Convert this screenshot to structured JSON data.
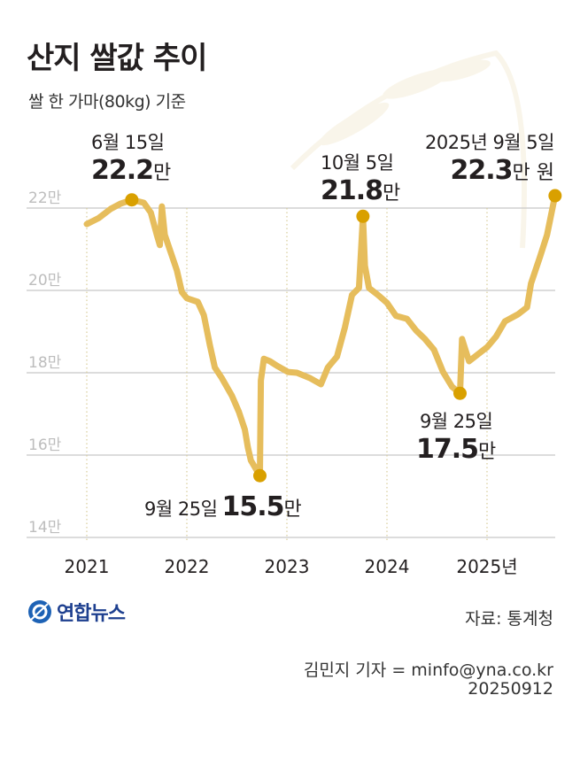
{
  "title": "산지 쌀값 추이",
  "subtitle": "쌀 한 가마(80kg) 기준",
  "logo": "연합뉴스",
  "source": "자료: 통계청",
  "byline": "김민지 기자 = minfo@yna.co.kr",
  "date": "20250912",
  "chart_data": {
    "type": "line",
    "title": "산지 쌀값 추이",
    "ylabel": "",
    "xlabel": "",
    "ylim": [
      14,
      22
    ],
    "yticks": [
      22,
      20,
      18,
      16,
      14
    ],
    "ytick_labels": [
      "22만",
      "20만",
      "18만",
      "16만",
      "14만"
    ],
    "xticks": [
      2021,
      2022,
      2023,
      2024,
      2025
    ],
    "xtick_labels": [
      "2021",
      "2022",
      "2023",
      "2024",
      "2025년"
    ],
    "grid": "horizontal",
    "line_color": "#e6bd5c",
    "marker_color": "#d9a000",
    "points": [
      [
        2021.0,
        21.61
      ],
      [
        2021.12,
        21.76
      ],
      [
        2021.24,
        21.98
      ],
      [
        2021.34,
        22.11
      ],
      [
        2021.45,
        22.2
      ],
      [
        2021.57,
        22.13
      ],
      [
        2021.64,
        21.89
      ],
      [
        2021.7,
        21.35
      ],
      [
        2021.73,
        21.1
      ],
      [
        2021.75,
        22.04
      ],
      [
        2021.78,
        21.35
      ],
      [
        2021.84,
        20.92
      ],
      [
        2021.9,
        20.49
      ],
      [
        2021.95,
        19.96
      ],
      [
        2022.0,
        19.81
      ],
      [
        2022.11,
        19.72
      ],
      [
        2022.17,
        19.4
      ],
      [
        2022.23,
        18.67
      ],
      [
        2022.28,
        18.13
      ],
      [
        2022.35,
        17.87
      ],
      [
        2022.45,
        17.44
      ],
      [
        2022.52,
        17.05
      ],
      [
        2022.58,
        16.62
      ],
      [
        2022.61,
        16.19
      ],
      [
        2022.64,
        15.87
      ],
      [
        2022.73,
        15.5
      ],
      [
        2022.74,
        17.81
      ],
      [
        2022.77,
        18.34
      ],
      [
        2022.83,
        18.28
      ],
      [
        2022.9,
        18.17
      ],
      [
        2023.01,
        18.02
      ],
      [
        2023.1,
        18.0
      ],
      [
        2023.23,
        17.87
      ],
      [
        2023.34,
        17.72
      ],
      [
        2023.41,
        18.13
      ],
      [
        2023.5,
        18.39
      ],
      [
        2023.58,
        19.1
      ],
      [
        2023.65,
        19.89
      ],
      [
        2023.72,
        20.06
      ],
      [
        2023.76,
        21.8
      ],
      [
        2023.78,
        20.6
      ],
      [
        2023.82,
        20.06
      ],
      [
        2023.91,
        19.89
      ],
      [
        2024.0,
        19.7
      ],
      [
        2024.09,
        19.38
      ],
      [
        2024.2,
        19.31
      ],
      [
        2024.29,
        19.03
      ],
      [
        2024.38,
        18.82
      ],
      [
        2024.47,
        18.56
      ],
      [
        2024.56,
        18.02
      ],
      [
        2024.65,
        17.66
      ],
      [
        2024.73,
        17.5
      ],
      [
        2024.75,
        18.82
      ],
      [
        2024.82,
        18.28
      ],
      [
        2024.91,
        18.45
      ],
      [
        2025.0,
        18.62
      ],
      [
        2025.09,
        18.88
      ],
      [
        2025.18,
        19.25
      ],
      [
        2025.31,
        19.42
      ],
      [
        2025.4,
        19.59
      ],
      [
        2025.44,
        20.17
      ],
      [
        2025.53,
        20.82
      ],
      [
        2025.6,
        21.35
      ],
      [
        2025.68,
        22.3
      ]
    ],
    "annotations": [
      {
        "x": 2021.45,
        "y": 22.2,
        "date": "6월 15일",
        "value": "22.2",
        "unit": "만"
      },
      {
        "x": 2022.73,
        "y": 15.5,
        "date": "9월 25일",
        "value": "15.5",
        "unit": "만"
      },
      {
        "x": 2023.76,
        "y": 21.8,
        "date": "10월 5일",
        "value": "21.8",
        "unit": "만"
      },
      {
        "x": 2024.73,
        "y": 17.5,
        "date": "9월 25일",
        "value": "17.5",
        "unit": "만"
      },
      {
        "x": 2025.68,
        "y": 22.3,
        "date": "2025년 9월 5일",
        "value": "22.3",
        "unit": "만 원"
      }
    ]
  }
}
